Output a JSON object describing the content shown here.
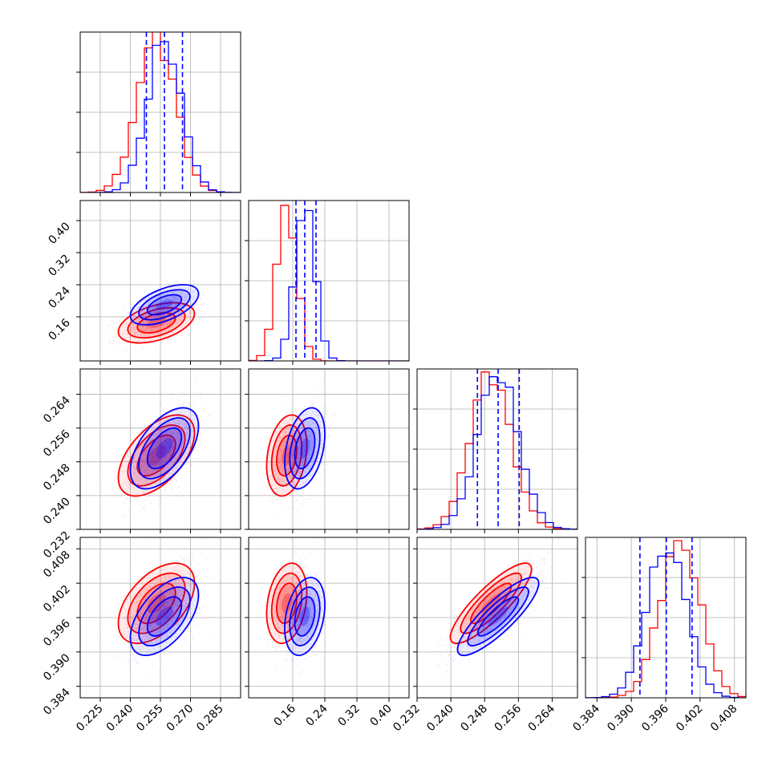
{
  "chart_data": {
    "type": "corner",
    "grid": true,
    "series_colors": {
      "blue": "#0000ff",
      "red": "#ff0000"
    },
    "parameters": [
      {
        "range": [
          0.215,
          0.295
        ],
        "ticks": [
          0.225,
          0.24,
          0.255,
          0.27,
          0.285
        ],
        "tick_labels": [
          "0.225",
          "0.240",
          "0.255",
          "0.270",
          "0.285"
        ],
        "blue_quantiles": [
          0.248,
          0.257,
          0.266
        ],
        "blue_mean": 0.257,
        "blue_sd": 0.0085,
        "red_mean": 0.253,
        "red_sd": 0.0095
      },
      {
        "range": [
          0.05,
          0.45
        ],
        "ticks": [
          0.16,
          0.24,
          0.32,
          0.4
        ],
        "tick_labels": [
          "0.16",
          "0.24",
          "0.32",
          "0.40"
        ],
        "blue_quantiles": [
          0.168,
          0.19,
          0.218
        ],
        "blue_mean": 0.19,
        "blue_sd": 0.025,
        "red_mean": 0.145,
        "red_sd": 0.025
      },
      {
        "range": [
          0.232,
          0.27
        ],
        "ticks": [
          0.232,
          0.24,
          0.248,
          0.256,
          0.264
        ],
        "tick_labels": [
          "0.232",
          "0.240",
          "0.248",
          "0.256",
          "0.264"
        ],
        "blue_quantiles": [
          0.2463,
          0.2512,
          0.2562
        ],
        "blue_mean": 0.2512,
        "blue_sd": 0.0048,
        "red_mean": 0.2495,
        "red_sd": 0.0048
      },
      {
        "range": [
          0.382,
          0.41
        ],
        "ticks": [
          0.384,
          0.39,
          0.396,
          0.402,
          0.408
        ],
        "tick_labels": [
          "0.384",
          "0.390",
          "0.396",
          "0.402",
          "0.408"
        ],
        "blue_quantiles": [
          0.3915,
          0.3961,
          0.4006
        ],
        "blue_mean": 0.3962,
        "blue_sd": 0.0034,
        "red_mean": 0.3985,
        "red_sd": 0.0035
      }
    ],
    "correlations": {
      "blue": {
        "1-0": 0.55,
        "2-0": 0.55,
        "2-1": 0.35,
        "3-0": 0.55,
        "3-1": 0.3,
        "3-2": 0.85
      },
      "red": {
        "1-0": 0.45,
        "2-0": 0.55,
        "2-1": 0.25,
        "3-0": 0.5,
        "3-1": 0.25,
        "3-2": 0.85
      }
    },
    "contour_levels_sigma": [
      0.5,
      1.0,
      1.5,
      2.0
    ]
  }
}
